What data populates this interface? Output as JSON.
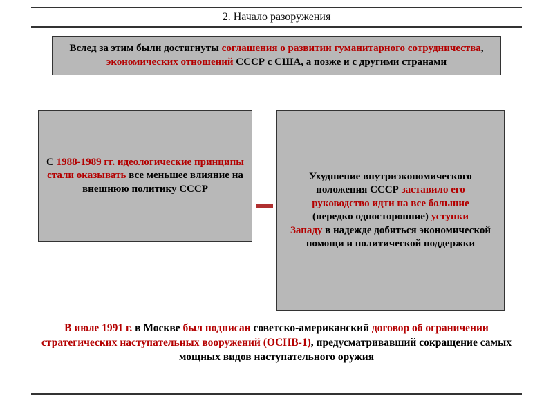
{
  "colors": {
    "box_bg": "#b8b8b8",
    "box_border": "#333333",
    "title_rule": "#333333",
    "text_red": "#b40000",
    "text_black": "#000000",
    "connector": "#b03030",
    "page_bg": "#ffffff"
  },
  "fonts": {
    "family": "Georgia, Times New Roman, serif",
    "title_size_pt": 12,
    "box_size_pt": 11.5,
    "bottom_size_pt": 12,
    "weight": "bold"
  },
  "title": "2. Начало разоружения",
  "top_box": {
    "segments": [
      {
        "t": "Вслед за этим были достигнуты ",
        "c": "blk"
      },
      {
        "t": "соглашения о развитии гуманитарного сотрудничества",
        "c": "red"
      },
      {
        "t": ", ",
        "c": "blk"
      },
      {
        "t": "экономических отношений",
        "c": "red"
      },
      {
        "t": " СССР с США, а позже и с другими странами",
        "c": "blk"
      }
    ]
  },
  "left_box": {
    "segments": [
      {
        "t": "С ",
        "c": "blk"
      },
      {
        "t": "1988-1989 гг. идеологические принципы стали оказывать",
        "c": "red"
      },
      {
        "t": " все меньшее влияние на внешнюю политику СССР",
        "c": "blk"
      }
    ]
  },
  "right_box": {
    "segments": [
      {
        "t": "Ухудшение внутриэкономического положения СССР ",
        "c": "blk"
      },
      {
        "t": "заставило его руководство идти на все большие",
        "c": "red"
      },
      {
        "t": "\n(нередко односторонние) ",
        "c": "blk"
      },
      {
        "t": "уступки\nЗападу",
        "c": "red"
      },
      {
        "t": " в надежде добиться экономической помощи и политической поддержки",
        "c": "blk"
      }
    ]
  },
  "bottom_box": {
    "segments": [
      {
        "t": "В июле 1991 г. ",
        "c": "red"
      },
      {
        "t": "в Москве ",
        "c": "blk"
      },
      {
        "t": "был подписан",
        "c": "red"
      },
      {
        "t": " советско-американский ",
        "c": "blk"
      },
      {
        "t": "договор об ограничении стратегических наступательных вооружений (ОСНВ-1)",
        "c": "red"
      },
      {
        "t": ", предусматривавший сокращение самых мощных видов наступательного оружия",
        "c": "blk"
      }
    ]
  }
}
